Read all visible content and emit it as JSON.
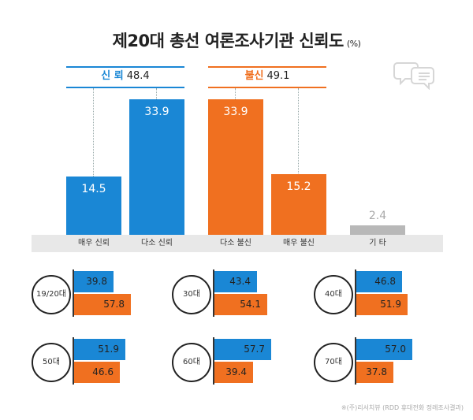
{
  "title": "제20대 총선 여론조사기관 신뢰도",
  "unit": "(%)",
  "colors": {
    "trust": "#1a87d5",
    "distrust": "#f07020",
    "other": "#b8b8b8"
  },
  "groups": [
    {
      "label": "신 뢰",
      "value": "48.4"
    },
    {
      "label": "불신",
      "value": "49.1"
    }
  ],
  "chart_data": [
    {
      "type": "bar",
      "categories": [
        "매우 신뢰",
        "다소 신뢰",
        "다소 불신",
        "매우 불신",
        "기 타"
      ],
      "values": [
        14.5,
        33.9,
        33.9,
        15.2,
        2.4
      ],
      "value_labels": [
        "14.5",
        "33.9",
        "33.9",
        "15.2",
        "2.4"
      ],
      "ylim": [
        0,
        40
      ]
    },
    {
      "type": "bar",
      "orientation": "horizontal",
      "categories": [
        "19/20대",
        "30대",
        "40대",
        "50대",
        "60대",
        "70대"
      ],
      "series": [
        {
          "values": [
            39.8,
            43.4,
            46.8,
            51.9,
            57.7,
            57.0
          ]
        },
        {
          "values": [
            57.8,
            54.1,
            51.9,
            46.6,
            39.4,
            37.8
          ]
        }
      ],
      "value_labels": [
        [
          "39.8",
          "57.8"
        ],
        [
          "43.4",
          "54.1"
        ],
        [
          "46.8",
          "51.9"
        ],
        [
          "51.9",
          "46.6"
        ],
        [
          "57.7",
          "39.4"
        ],
        [
          "57.0",
          "37.8"
        ]
      ]
    }
  ],
  "source": "※(주)리서치뷰 (RDD 휴대전화 정례조사결과)"
}
